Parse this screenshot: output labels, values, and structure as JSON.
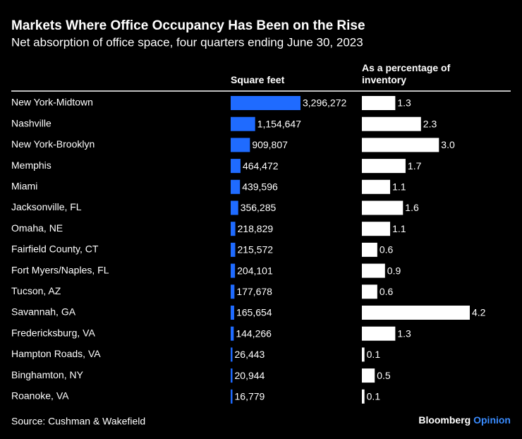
{
  "chart_data": {
    "type": "bar",
    "title": "Markets Where Office Occupancy Has Been on the Rise",
    "subtitle": "Net absorption of office space, four quarters ending June 30, 2023",
    "categories": [
      "New York-Midtown",
      "Nashville",
      "New York-Brooklyn",
      "Memphis",
      "Miami",
      "Jacksonville, FL",
      "Omaha, NE",
      "Fairfield County, CT",
      "Fort Myers/Naples, FL",
      "Tucson, AZ",
      "Savannah, GA",
      "Fredericksburg, VA",
      "Hampton Roads, VA",
      "Binghamton, NY",
      "Roanoke, VA"
    ],
    "series": [
      {
        "name": "Square feet",
        "color": "#1f6bff",
        "values": [
          3296272,
          1154647,
          909807,
          464472,
          439596,
          356285,
          218829,
          215572,
          204101,
          177678,
          165654,
          144266,
          26443,
          20944,
          16779
        ],
        "value_labels": [
          "3,296,272",
          "1,154,647",
          "909,807",
          "464,472",
          "439,596",
          "356,285",
          "218,829",
          "215,572",
          "204,101",
          "177,678",
          "165,654",
          "144,266",
          "26,443",
          "20,944",
          "16,779"
        ]
      },
      {
        "name": "As a percentage of inventory",
        "color": "#ffffff",
        "values": [
          1.3,
          2.3,
          3.0,
          1.7,
          1.1,
          1.6,
          1.1,
          0.6,
          0.9,
          0.6,
          4.2,
          1.3,
          0.1,
          0.5,
          0.1
        ],
        "value_labels": [
          "1.3",
          "2.3",
          "3.0",
          "1.7",
          "1.1",
          "1.6",
          "1.1",
          "0.6",
          "0.9",
          "0.6",
          "4.2",
          "1.3",
          "0.1",
          "0.5",
          "0.1"
        ]
      }
    ],
    "source": "Source: Cushman & Wakefield",
    "credit": {
      "name": "Bloomberg",
      "label": "Opinion"
    }
  }
}
